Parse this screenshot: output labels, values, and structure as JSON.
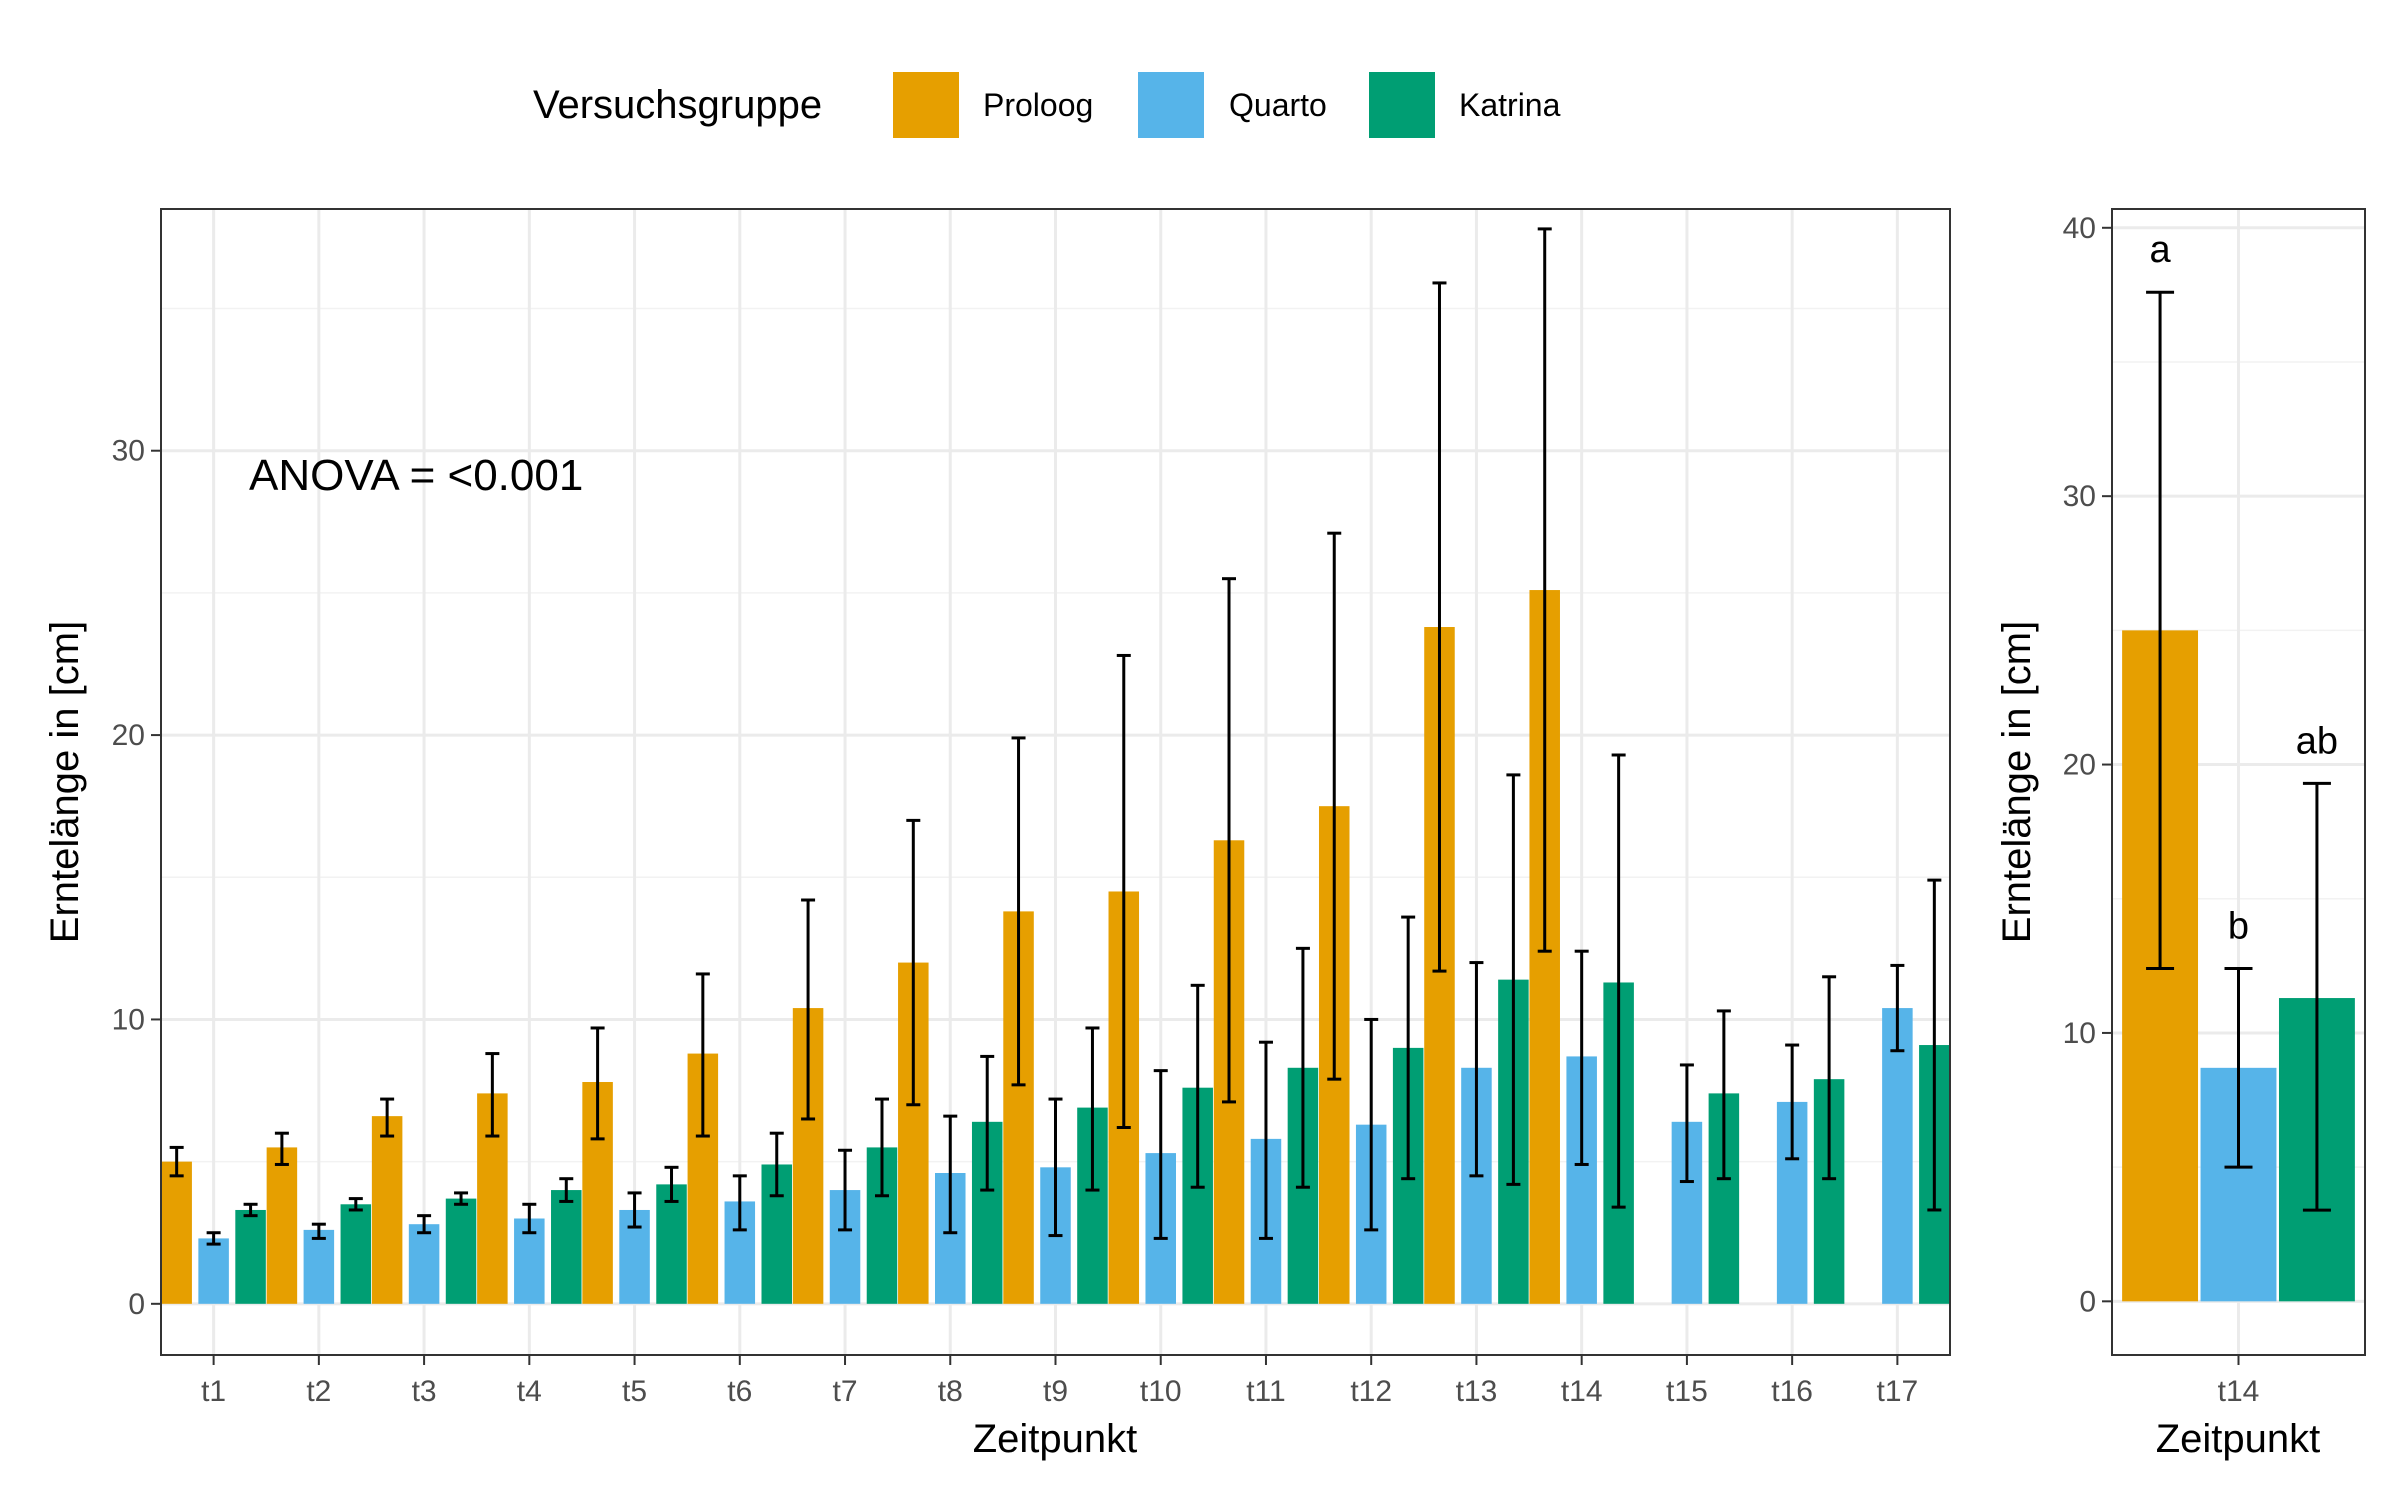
{
  "legend": {
    "title": "Versuchsgruppe",
    "position": "top",
    "entries": [
      {
        "name": "Proloog",
        "color": "#E69F00"
      },
      {
        "name": "Quarto",
        "color": "#56B4E9"
      },
      {
        "name": "Katrina",
        "color": "#009E73"
      }
    ]
  },
  "chart_data": [
    {
      "type": "bar",
      "xlabel": "Zeitpunkt",
      "ylabel": "Erntelänge in [cm]",
      "ylim": [
        -1.8,
        38.5
      ],
      "yticks": [
        0,
        10,
        20,
        30
      ],
      "grid": true,
      "annotation": "ANOVA = <0.001",
      "categories": [
        "t1",
        "t2",
        "t3",
        "t4",
        "t5",
        "t6",
        "t7",
        "t8",
        "t9",
        "t10",
        "t11",
        "t12",
        "t13",
        "t14",
        "t15",
        "t16",
        "t17"
      ],
      "series": [
        {
          "name": "Proloog",
          "color": "#E69F00",
          "values": [
            5.0,
            5.5,
            6.6,
            7.4,
            7.8,
            8.8,
            10.4,
            12.0,
            13.8,
            14.5,
            16.3,
            17.5,
            23.8,
            25.1,
            null,
            null,
            null
          ],
          "err_low": [
            4.5,
            4.9,
            5.9,
            5.9,
            5.8,
            5.9,
            6.5,
            7.0,
            7.7,
            6.2,
            7.1,
            7.9,
            11.7,
            12.4,
            null,
            null,
            null
          ],
          "err_high": [
            5.5,
            6.0,
            7.2,
            8.8,
            9.7,
            11.6,
            14.2,
            17.0,
            19.9,
            22.8,
            25.5,
            27.1,
            35.9,
            37.8,
            null,
            null,
            null
          ]
        },
        {
          "name": "Quarto",
          "color": "#56B4E9",
          "values": [
            2.3,
            2.6,
            2.8,
            3.0,
            3.3,
            3.6,
            4.0,
            4.6,
            4.8,
            5.3,
            5.8,
            6.3,
            8.3,
            8.7,
            6.4,
            7.1,
            10.4
          ],
          "err_low": [
            2.1,
            2.3,
            2.5,
            2.5,
            2.7,
            2.6,
            2.6,
            2.5,
            2.4,
            2.3,
            2.3,
            2.6,
            4.5,
            4.9,
            4.3,
            5.1,
            8.9
          ],
          "err_high": [
            2.5,
            2.8,
            3.1,
            3.5,
            3.9,
            4.5,
            5.4,
            6.6,
            7.2,
            8.2,
            9.2,
            10.0,
            12.0,
            12.4,
            8.4,
            9.1,
            11.9
          ]
        },
        {
          "name": "Katrina",
          "color": "#009E73",
          "values": [
            3.3,
            3.5,
            3.7,
            4.0,
            4.2,
            4.9,
            5.5,
            6.4,
            6.9,
            7.6,
            8.3,
            9.0,
            11.4,
            11.3,
            7.4,
            7.9,
            9.1
          ],
          "err_low": [
            3.1,
            3.3,
            3.5,
            3.6,
            3.6,
            3.8,
            3.8,
            4.0,
            4.0,
            4.1,
            4.1,
            4.4,
            4.2,
            3.4,
            4.4,
            4.4,
            3.3
          ],
          "err_high": [
            3.5,
            3.7,
            3.9,
            4.4,
            4.8,
            6.0,
            7.2,
            8.7,
            9.7,
            11.2,
            12.5,
            13.6,
            18.6,
            19.3,
            10.3,
            11.5,
            14.9
          ]
        }
      ]
    },
    {
      "type": "bar",
      "xlabel": "Zeitpunkt",
      "ylabel": "Erntelänge in [cm]",
      "ylim": [
        -2,
        40.7
      ],
      "yticks": [
        0,
        10,
        20,
        30,
        40
      ],
      "grid": true,
      "categories": [
        "t14"
      ],
      "series": [
        {
          "name": "Proloog",
          "color": "#E69F00",
          "values": [
            25.0
          ],
          "err_low": [
            12.4
          ],
          "err_high": [
            37.6
          ],
          "letter": "a"
        },
        {
          "name": "Quarto",
          "color": "#56B4E9",
          "values": [
            8.7
          ],
          "err_low": [
            5.0
          ],
          "err_high": [
            12.4
          ],
          "letter": "b"
        },
        {
          "name": "Katrina",
          "color": "#009E73",
          "values": [
            11.3
          ],
          "err_low": [
            3.4
          ],
          "err_high": [
            19.3
          ],
          "letter": "ab"
        }
      ]
    }
  ]
}
